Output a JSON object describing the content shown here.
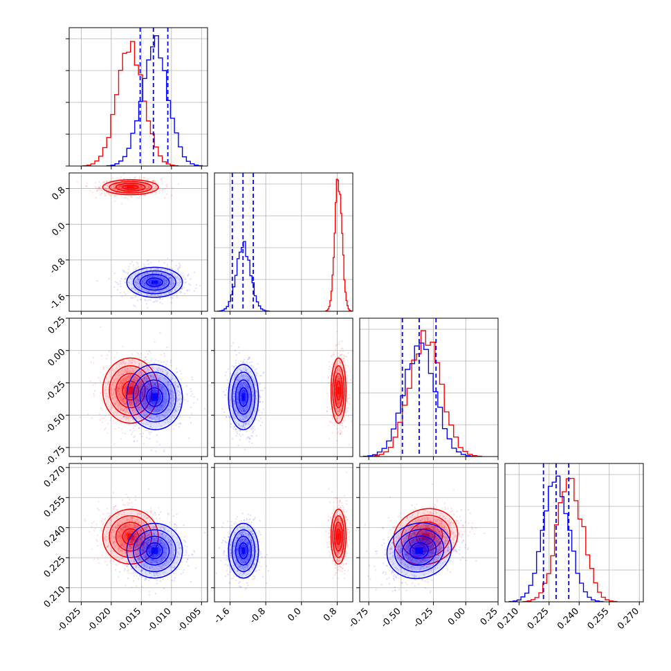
{
  "colors": {
    "series_a": "#ff0000",
    "series_b": "#0000ff",
    "grid": "#b0b0b0",
    "frame": "#000000"
  },
  "chart_data": {
    "type": "corner",
    "grid": true,
    "parameters": [
      {
        "range": [
          -0.027,
          -0.004
        ],
        "ticks": [
          "-0.025",
          "-0.020",
          "-0.015",
          "-0.010",
          "-0.005"
        ],
        "tick_values": [
          -0.025,
          -0.02,
          -0.015,
          -0.01,
          -0.005
        ]
      },
      {
        "range": [
          -1.95,
          1.15
        ],
        "ticks": [
          "-1.6",
          "-0.8",
          "0.0",
          "0.8"
        ],
        "tick_values": [
          -1.6,
          -0.8,
          0.0,
          0.8
        ]
      },
      {
        "range": [
          -0.82,
          0.25
        ],
        "ticks": [
          "-0.75",
          "-0.50",
          "-0.25",
          "0.00",
          "0.25"
        ],
        "tick_values": [
          -0.75,
          -0.5,
          -0.25,
          0.0,
          0.25
        ]
      },
      {
        "range": [
          0.203,
          0.272
        ],
        "ticks": [
          "0.210",
          "0.225",
          "0.240",
          "0.255",
          "0.270"
        ],
        "tick_values": [
          0.21,
          0.225,
          0.24,
          0.255,
          0.27
        ]
      }
    ],
    "series": [
      {
        "color": "red",
        "means": [
          -0.0168,
          0.83,
          -0.31,
          0.2355
        ],
        "sigmas": [
          0.0022,
          0.08,
          0.12,
          0.0065
        ],
        "hist_peaks": [
          0.86,
          0.97,
          0.88,
          0.88
        ],
        "correlations": {
          "0-3": -0.1,
          "2-3": 0.35
        }
      },
      {
        "color": "blue",
        "means": [
          -0.0128,
          -1.3,
          -0.36,
          0.2285
        ],
        "sigmas": [
          0.0022,
          0.16,
          0.12,
          0.0065
        ],
        "hist_peaks": [
          0.87,
          0.48,
          0.82,
          0.86
        ],
        "correlations": {
          "0-2": 0.1,
          "2-3": 0.3
        }
      }
    ],
    "quantile_lines": {
      "color": "blue",
      "values": [
        [
          -0.0152,
          -0.013,
          -0.0106
        ],
        [
          -1.55,
          -1.31,
          -1.08
        ],
        [
          -0.49,
          -0.36,
          -0.23
        ],
        [
          0.2222,
          0.2285,
          0.2348
        ]
      ]
    }
  }
}
